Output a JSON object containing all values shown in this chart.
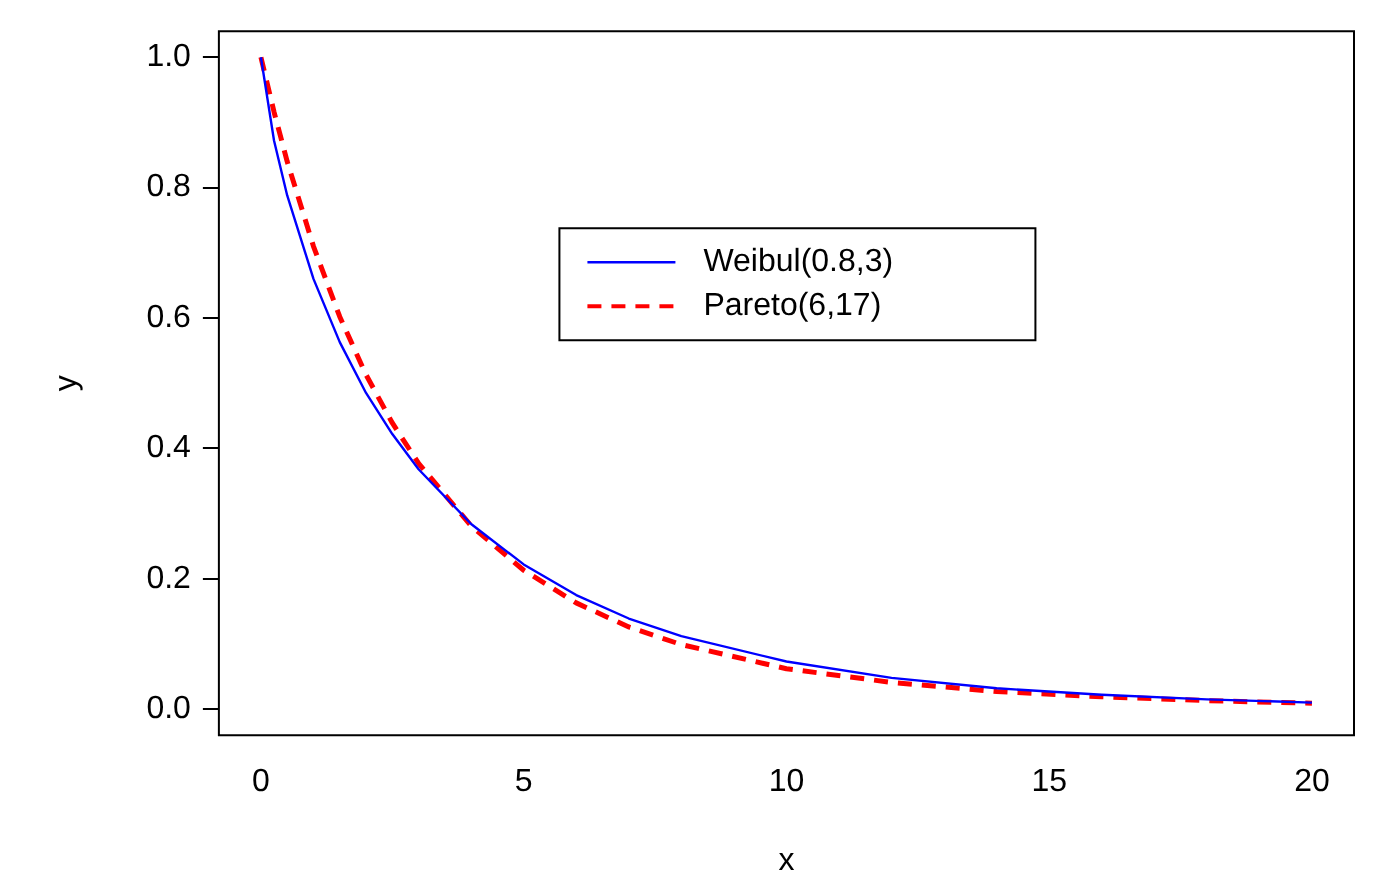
{
  "chart_data": {
    "type": "line",
    "xlabel": "x",
    "ylabel": "y",
    "x": [
      0,
      0.25,
      0.5,
      1,
      1.5,
      2,
      2.5,
      3,
      4,
      5,
      6,
      7,
      8,
      10,
      12,
      14,
      16,
      18,
      20
    ],
    "series": [
      {
        "name": "Weibul(0.8,3)",
        "color": "#0000ff",
        "line_style": "solid",
        "values": [
          1,
          0.872,
          0.788,
          0.66,
          0.563,
          0.485,
          0.422,
          0.368,
          0.284,
          0.222,
          0.175,
          0.139,
          0.112,
          0.073,
          0.048,
          0.032,
          0.022,
          0.015,
          0.01
        ]
      },
      {
        "name": "Pareto(6,17)",
        "color": "#ff0000",
        "line_style": "dashed",
        "values": [
          1,
          0.916,
          0.84,
          0.71,
          0.602,
          0.513,
          0.439,
          0.377,
          0.281,
          0.213,
          0.163,
          0.126,
          0.099,
          0.062,
          0.041,
          0.027,
          0.019,
          0.013,
          0.009
        ]
      }
    ],
    "xlim": [
      -0.8,
      20.8
    ],
    "ylim": [
      -0.04,
      1.04
    ],
    "xticks": [
      0,
      5,
      10,
      15,
      20
    ],
    "yticks": [
      {
        "value": 0,
        "label": "0.0"
      },
      {
        "value": 0.2,
        "label": "0.2"
      },
      {
        "value": 0.4,
        "label": "0.4"
      },
      {
        "value": 0.6,
        "label": "0.6"
      },
      {
        "value": 0.8,
        "label": "0.8"
      },
      {
        "value": 1,
        "label": "1.0"
      }
    ],
    "grid": false,
    "legend": "top right",
    "marker": "none"
  }
}
